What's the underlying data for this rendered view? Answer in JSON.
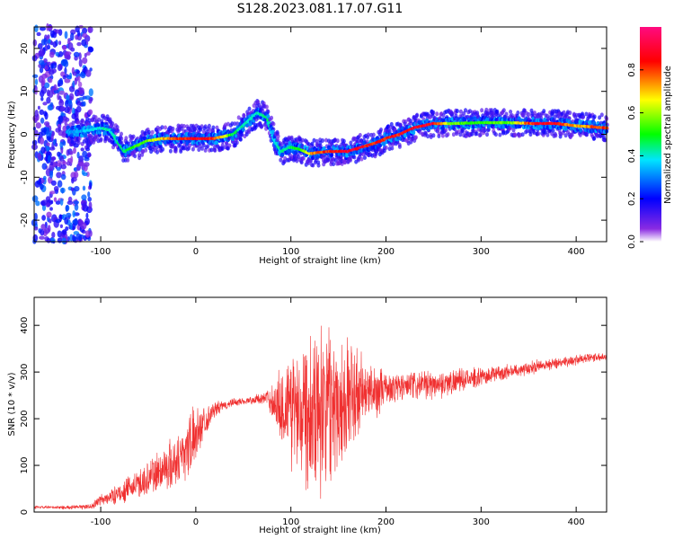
{
  "title": "S128.2023.081.17.07.G11",
  "chart_data": [
    {
      "type": "heatmap",
      "xlabel": "Height of straight line (km)",
      "ylabel": "Frequency (Hz)",
      "xlim": [
        -170,
        432
      ],
      "ylim": [
        -25,
        25
      ],
      "x_ticks": [
        -100,
        0,
        100,
        200,
        300,
        400
      ],
      "y_ticks": [
        -20,
        -10,
        0,
        10,
        20
      ],
      "x_tick_labels": [
        "-100",
        "0",
        "100",
        "200",
        "300",
        "400"
      ],
      "y_tick_labels": [
        "-20",
        "-10",
        "0",
        "10",
        "20"
      ],
      "colorbar": {
        "label": "Normalized spectral amplitude",
        "range": [
          0,
          1
        ],
        "ticks": [
          0.0,
          0.2,
          0.4,
          0.6,
          0.8
        ],
        "tick_labels": [
          "0.0",
          "0.2",
          "0.4",
          "0.6",
          "0.8"
        ],
        "colormap": [
          "#ffffff",
          "#7f00ff",
          "#0000ff",
          "#00ffff",
          "#00ff00",
          "#ffff00",
          "#ff0000",
          "#ff0080"
        ]
      },
      "ridge": {
        "x": [
          -130,
          -110,
          -100,
          -90,
          -75,
          -65,
          -50,
          -35,
          -20,
          0,
          20,
          40,
          55,
          65,
          75,
          82,
          90,
          100,
          110,
          120,
          140,
          160,
          175,
          190,
          200,
          215,
          230,
          250,
          270,
          300,
          330,
          360,
          380,
          400,
          432
        ],
        "y": [
          0.5,
          1.0,
          1.5,
          1.0,
          -4.0,
          -3.0,
          -1.5,
          -1.0,
          -1.0,
          -1.0,
          -1.0,
          0.0,
          3.0,
          5.0,
          4.0,
          -1.0,
          -4.0,
          -3.0,
          -3.5,
          -4.5,
          -4.0,
          -4.0,
          -3.0,
          -2.0,
          -1.0,
          0.0,
          1.5,
          2.5,
          2.5,
          2.7,
          2.7,
          2.5,
          2.5,
          2.0,
          1.5
        ],
        "amp": [
          0.35,
          0.4,
          0.45,
          0.45,
          0.5,
          0.55,
          0.6,
          0.75,
          0.85,
          0.95,
          0.9,
          0.5,
          0.45,
          0.45,
          0.5,
          0.4,
          0.45,
          0.5,
          0.55,
          0.75,
          0.9,
          0.95,
          0.95,
          0.9,
          0.9,
          0.92,
          0.95,
          0.95,
          0.6,
          0.55,
          0.6,
          0.95,
          0.95,
          0.75,
          0.9
        ]
      }
    },
    {
      "type": "line",
      "xlabel": "Height of straight line (km)",
      "ylabel": "SNR (10 * v/v)",
      "xlim": [
        -170,
        432
      ],
      "ylim": [
        0,
        460
      ],
      "x_ticks": [
        -100,
        0,
        100,
        200,
        300,
        400
      ],
      "y_ticks": [
        0,
        100,
        200,
        300,
        400
      ],
      "x_tick_labels": [
        "-100",
        "0",
        "100",
        "200",
        "300",
        "400"
      ],
      "y_tick_labels": [
        "0",
        "100",
        "200",
        "300",
        "400"
      ],
      "color": "#f03030",
      "envelope": {
        "x": [
          -170,
          -130,
          -110,
          -100,
          -80,
          -60,
          -40,
          -20,
          -5,
          5,
          20,
          40,
          60,
          75,
          85,
          95,
          110,
          130,
          150,
          170,
          185,
          200,
          230,
          260,
          300,
          340,
          380,
          432
        ],
        "base": [
          10,
          10,
          12,
          25,
          40,
          60,
          85,
          110,
          150,
          185,
          220,
          235,
          240,
          245,
          230,
          225,
          230,
          235,
          240,
          250,
          255,
          265,
          270,
          275,
          290,
          305,
          320,
          335
        ],
        "noise": [
          3,
          4,
          6,
          12,
          20,
          30,
          45,
          55,
          70,
          40,
          15,
          8,
          8,
          15,
          60,
          110,
          160,
          180,
          150,
          100,
          60,
          35,
          30,
          28,
          18,
          14,
          12,
          8
        ]
      }
    }
  ]
}
